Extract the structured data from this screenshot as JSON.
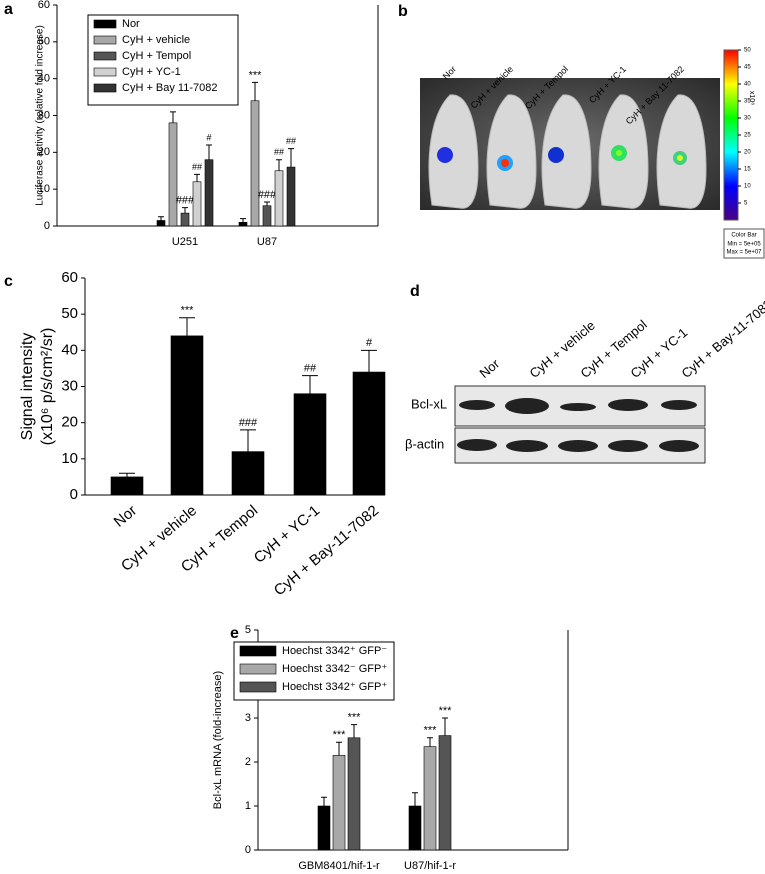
{
  "chart_data": [
    {
      "type": "bar",
      "panel": "a",
      "y_label": "Luciferase activity (relative fold increase)",
      "categories": [
        "U251",
        "U87"
      ],
      "series": [
        {
          "name": "Nor",
          "color": "#000000",
          "values": [
            1.5,
            1
          ],
          "errors": [
            1,
            1
          ],
          "markers": [
            null,
            null
          ]
        },
        {
          "name": "CyH + vehicle",
          "color": "#a8a8a8",
          "values": [
            28,
            34
          ],
          "errors": [
            3,
            5
          ],
          "markers": [
            "***",
            "***"
          ]
        },
        {
          "name": "CyH + Tempol",
          "color": "#555555",
          "values": [
            3.5,
            5.5
          ],
          "errors": [
            1.5,
            1
          ],
          "markers": [
            "###",
            "###"
          ]
        },
        {
          "name": "CyH + YC-1",
          "color": "#d0d0d0",
          "values": [
            12,
            15
          ],
          "errors": [
            2,
            3
          ],
          "markers": [
            "##",
            "##"
          ]
        },
        {
          "name": "CyH + Bay 11-7082",
          "color": "#333333",
          "values": [
            18,
            16
          ],
          "errors": [
            4,
            5
          ],
          "markers": [
            "#",
            "##"
          ]
        }
      ],
      "ylim": [
        0,
        60
      ],
      "yticks": [
        0,
        10,
        20,
        30,
        40,
        50,
        60
      ],
      "legend": "upper left"
    },
    {
      "type": "bar",
      "panel": "c",
      "y_label": [
        "Signal intensity",
        "(x10⁶ p/s/cm²/sr)"
      ],
      "categories": [
        "Nor",
        "CyH + vehicle",
        "CyH + Tempol",
        "CyH + YC-1",
        "CyH + Bay-11-7082"
      ],
      "values": [
        5,
        44,
        12,
        28,
        34
      ],
      "errors": [
        1,
        5,
        6,
        5,
        6
      ],
      "markers": [
        null,
        "***",
        "###",
        "##",
        "#"
      ],
      "color": "#000000",
      "ylim": [
        0,
        60
      ],
      "yticks": [
        0,
        10,
        20,
        30,
        40,
        50,
        60
      ]
    },
    {
      "type": "bar",
      "panel": "e",
      "y_label": "Bcl-xL mRNA (fold-increase)",
      "categories": [
        "GBM8401/hif-1-r",
        "U87/hif-1-r"
      ],
      "series": [
        {
          "name": "Hoechst 3342⁺ GFP⁻",
          "color": "#000000",
          "values": [
            1,
            1
          ],
          "errors": [
            0.2,
            0.3
          ],
          "markers": [
            null,
            null
          ]
        },
        {
          "name": "Hoechst 3342⁻ GFP⁺",
          "color": "#a8a8a8",
          "values": [
            2.15,
            2.35
          ],
          "errors": [
            0.3,
            0.2
          ],
          "markers": [
            "***",
            "***"
          ]
        },
        {
          "name": "Hoechst 3342⁺ GFP⁺",
          "color": "#555555",
          "values": [
            2.55,
            2.6
          ],
          "errors": [
            0.3,
            0.4
          ],
          "markers": [
            "***",
            "***"
          ]
        }
      ],
      "ylim": [
        0,
        5
      ],
      "yticks": [
        0,
        1,
        2,
        3,
        4,
        5
      ],
      "legend": "upper left"
    }
  ],
  "panel_b": {
    "panel": "b",
    "columns": [
      "Nor",
      "CyH + vehicle",
      "CyH + Tempol",
      "CyH + YC-1",
      "CyH + Bay 11-7082"
    ],
    "colorbar": {
      "unit": "x10⁶",
      "lim": [
        0,
        50
      ],
      "ticks": [
        5,
        10,
        15,
        20,
        25,
        30,
        35,
        40,
        45,
        50
      ],
      "title": "Color Bar",
      "min": "Min = 5e+05",
      "max": "Max = 5e+07"
    }
  },
  "panel_d": {
    "panel": "d",
    "columns": [
      "Nor",
      "CyH + vehicle",
      "CyH + Tempol",
      "CyH + YC-1",
      "CyH + Bay-11-7082"
    ],
    "rows": [
      "Bcl-xL",
      "β-actin"
    ]
  }
}
